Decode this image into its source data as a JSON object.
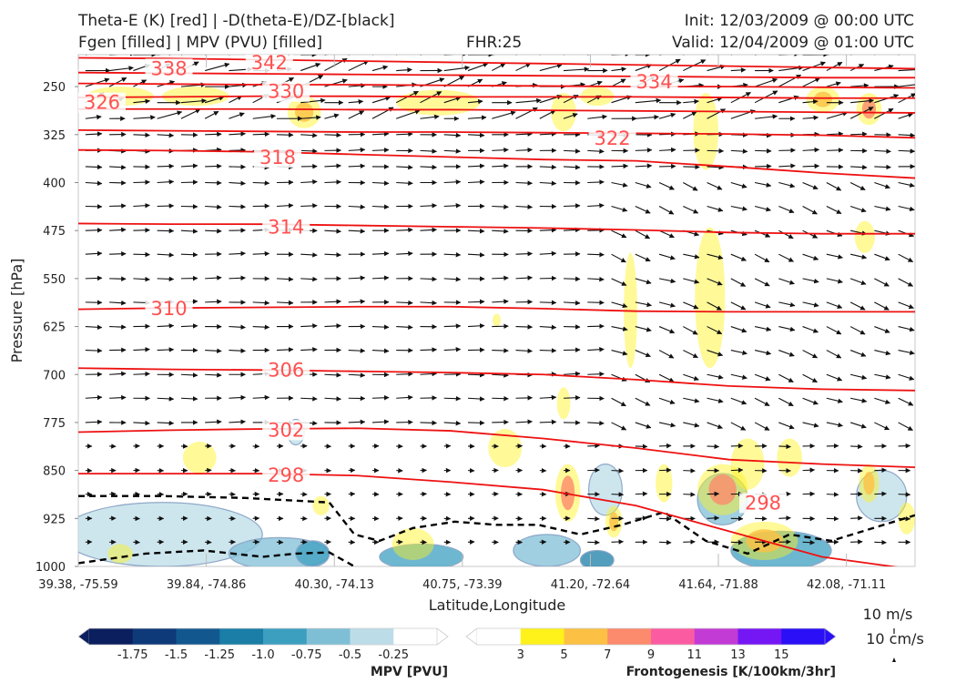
{
  "header": {
    "title_line1": "Theta-E (K) [red] | -D(theta-E)/DZ-[black]",
    "title_line2": "Fgen [filled] | MPV (PVU) [filled]",
    "fhr": "FHR:25",
    "init": "Init: 12/03/2009 @ 00:00 UTC",
    "valid": "Valid: 12/04/2009 @ 01:00 UTC"
  },
  "chart_data": {
    "type": "cross-section",
    "xlabel": "Latitude,Longitude",
    "ylabel": "Pressure [hPa]",
    "x_ticks": [
      "39.38, -75.59",
      "39.84, -74.86",
      "40.30, -74.13",
      "40.75, -73.39",
      "41.20, -72.64",
      "41.64, -71.88",
      "42.08, -71.11"
    ],
    "y_ticks": [
      250,
      325,
      400,
      475,
      550,
      625,
      700,
      775,
      850,
      925,
      1000
    ],
    "ylim": [
      1000,
      200
    ],
    "theta_e_contours": [
      {
        "value": 298,
        "pressure": [
          855,
          855,
          855,
          858,
          868,
          880,
          905,
          945,
          985,
          1005
        ]
      },
      {
        "value": 302,
        "pressure": [
          790,
          787,
          785,
          784,
          788,
          800,
          815,
          833,
          840,
          845
        ]
      },
      {
        "value": 306,
        "pressure": [
          690,
          692,
          693,
          695,
          697,
          700,
          708,
          718,
          723,
          725
        ]
      },
      {
        "value": 310,
        "pressure": [
          598,
          596,
          595,
          594,
          594,
          597,
          601,
          602,
          602,
          602
        ]
      },
      {
        "value": 314,
        "pressure": [
          464,
          465,
          465,
          467,
          469,
          471,
          474,
          478,
          480,
          480
        ]
      },
      {
        "value": 318,
        "pressure": [
          349,
          350,
          352,
          356,
          360,
          364,
          366,
          375,
          385,
          393
        ]
      },
      {
        "value": 322,
        "pressure": [
          318,
          319,
          320,
          321,
          321,
          322,
          323,
          324,
          326,
          330
        ]
      },
      {
        "value": 326,
        "pressure": [
          285,
          285,
          285,
          286,
          286,
          287,
          288,
          289,
          290,
          291
        ]
      },
      {
        "value": 330,
        "pressure": [
          267,
          266,
          265,
          265,
          266,
          266,
          266,
          267,
          268,
          268
        ]
      },
      {
        "value": 334,
        "pressure": [
          245,
          246,
          247,
          247,
          248,
          249,
          250,
          250,
          251,
          252
        ]
      },
      {
        "value": 338,
        "pressure": [
          228,
          229,
          230,
          231,
          232,
          233,
          234,
          235,
          236,
          236
        ]
      },
      {
        "value": 342,
        "pressure": [
          205,
          206,
          208,
          210,
          212,
          214,
          216,
          218,
          220,
          222
        ]
      }
    ],
    "theta_e_labels": [
      {
        "text": "342",
        "frac": 0.2,
        "p": 213
      },
      {
        "text": "338",
        "frac": 0.08,
        "p": 222
      },
      {
        "text": "334",
        "frac": 0.66,
        "p": 243
      },
      {
        "text": "330",
        "frac": 0.22,
        "p": 258
      },
      {
        "text": "326",
        "frac": 0.0,
        "p": 275
      },
      {
        "text": "322",
        "frac": 0.61,
        "p": 331
      },
      {
        "text": "318",
        "frac": 0.21,
        "p": 361
      },
      {
        "text": "314",
        "frac": 0.22,
        "p": 470
      },
      {
        "text": "310",
        "frac": 0.08,
        "p": 597
      },
      {
        "text": "306",
        "frac": 0.22,
        "p": 693
      },
      {
        "text": "302",
        "frac": 0.22,
        "p": 787
      },
      {
        "text": "298",
        "frac": 0.22,
        "p": 858
      },
      {
        "text": "298",
        "frac": 0.79,
        "p": 901
      }
    ],
    "fgen_blobs": [
      {
        "frac": 0.05,
        "p": 265,
        "rx": 0.04,
        "rp": 15,
        "level": 3
      },
      {
        "frac": 0.14,
        "p": 265,
        "rx": 0.04,
        "rp": 15,
        "level": 3
      },
      {
        "frac": 0.27,
        "p": 290,
        "rx": 0.02,
        "rp": 25,
        "level": 5
      },
      {
        "frac": 0.43,
        "p": 275,
        "rx": 0.05,
        "rp": 20,
        "level": 3
      },
      {
        "frac": 0.58,
        "p": 290,
        "rx": 0.015,
        "rp": 30,
        "level": 3
      },
      {
        "frac": 0.62,
        "p": 265,
        "rx": 0.02,
        "rp": 15,
        "level": 3
      },
      {
        "frac": 0.75,
        "p": 320,
        "rx": 0.015,
        "rp": 60,
        "level": 3
      },
      {
        "frac": 0.89,
        "p": 270,
        "rx": 0.02,
        "rp": 20,
        "level": 5
      },
      {
        "frac": 0.945,
        "p": 285,
        "rx": 0.015,
        "rp": 25,
        "level": 7
      },
      {
        "frac": 0.94,
        "p": 485,
        "rx": 0.012,
        "rp": 25,
        "level": 3
      },
      {
        "frac": 0.66,
        "p": 600,
        "rx": 0.008,
        "rp": 90,
        "level": 3
      },
      {
        "frac": 0.755,
        "p": 580,
        "rx": 0.018,
        "rp": 110,
        "level": 3
      },
      {
        "frac": 0.5,
        "p": 615,
        "rx": 0.005,
        "rp": 10,
        "level": 3
      },
      {
        "frac": 0.58,
        "p": 745,
        "rx": 0.008,
        "rp": 25,
        "level": 3
      },
      {
        "frac": 0.51,
        "p": 815,
        "rx": 0.02,
        "rp": 30,
        "level": 3
      },
      {
        "frac": 0.145,
        "p": 830,
        "rx": 0.02,
        "rp": 25,
        "level": 3
      },
      {
        "frac": 0.585,
        "p": 885,
        "rx": 0.015,
        "rp": 45,
        "level": 7
      },
      {
        "frac": 0.64,
        "p": 930,
        "rx": 0.01,
        "rp": 25,
        "level": 5
      },
      {
        "frac": 0.7,
        "p": 870,
        "rx": 0.01,
        "rp": 30,
        "level": 3
      },
      {
        "frac": 0.77,
        "p": 880,
        "rx": 0.03,
        "rp": 40,
        "level": 7
      },
      {
        "frac": 0.8,
        "p": 840,
        "rx": 0.02,
        "rp": 40,
        "level": 3
      },
      {
        "frac": 0.85,
        "p": 830,
        "rx": 0.015,
        "rp": 30,
        "level": 3
      },
      {
        "frac": 0.82,
        "p": 960,
        "rx": 0.04,
        "rp": 30,
        "level": 5
      },
      {
        "frac": 0.945,
        "p": 870,
        "rx": 0.012,
        "rp": 30,
        "level": 5
      },
      {
        "frac": 0.99,
        "p": 925,
        "rx": 0.01,
        "rp": 25,
        "level": 3
      },
      {
        "frac": 0.4,
        "p": 965,
        "rx": 0.025,
        "rp": 25,
        "level": 3
      },
      {
        "frac": 0.29,
        "p": 905,
        "rx": 0.01,
        "rp": 15,
        "level": 3
      },
      {
        "frac": 0.05,
        "p": 980,
        "rx": 0.015,
        "rp": 15,
        "level": 3
      }
    ],
    "mpv_blobs": [
      {
        "frac": 0.1,
        "p": 950,
        "rx": 0.12,
        "rp": 50,
        "level": -0.25
      },
      {
        "frac": 0.24,
        "p": 980,
        "rx": 0.06,
        "rp": 25,
        "level": -0.5
      },
      {
        "frac": 0.28,
        "p": 980,
        "rx": 0.02,
        "rp": 20,
        "level": -0.75
      },
      {
        "frac": 0.41,
        "p": 985,
        "rx": 0.05,
        "rp": 20,
        "level": -0.75
      },
      {
        "frac": 0.56,
        "p": 975,
        "rx": 0.04,
        "rp": 25,
        "level": -0.5
      },
      {
        "frac": 0.62,
        "p": 990,
        "rx": 0.02,
        "rp": 15,
        "level": -1.0
      },
      {
        "frac": 0.63,
        "p": 880,
        "rx": 0.02,
        "rp": 40,
        "level": -0.25
      },
      {
        "frac": 0.77,
        "p": 895,
        "rx": 0.03,
        "rp": 40,
        "level": -0.5
      },
      {
        "frac": 0.84,
        "p": 975,
        "rx": 0.06,
        "rp": 30,
        "level": -0.75
      },
      {
        "frac": 0.96,
        "p": 890,
        "rx": 0.03,
        "rp": 40,
        "level": -0.25
      },
      {
        "frac": 0.26,
        "p": 790,
        "rx": 0.01,
        "rp": 20,
        "level": -0.25
      }
    ],
    "dthetae_dz_dashed": [
      {
        "frac": [
          0.0,
          0.1,
          0.2,
          0.3,
          0.33,
          0.36,
          0.4,
          0.45,
          0.5,
          0.55,
          0.6,
          0.65,
          0.7,
          0.75,
          0.8,
          0.85,
          0.9,
          0.95,
          1.0
        ],
        "p": [
          890,
          890,
          893,
          900,
          950,
          960,
          940,
          930,
          935,
          935,
          950,
          935,
          915,
          960,
          980,
          950,
          960,
          940,
          920
        ]
      },
      {
        "frac": [
          0.0,
          0.08,
          0.15,
          0.22,
          0.26,
          0.3,
          0.33
        ],
        "p": [
          995,
          980,
          975,
          985,
          980,
          978,
          1000
        ]
      }
    ],
    "wind_ref": {
      "label1": "10 m/s",
      "label2": "10 cm/s"
    },
    "colorbars": {
      "mpv": {
        "label": "MPV [PVU]",
        "ticks": [
          "-1.75",
          "-1.5",
          "-1.25",
          "-1.0",
          "-0.75",
          "-0.5",
          "-0.25"
        ],
        "colors": [
          "#0b1f5e",
          "#0e3a7a",
          "#12588f",
          "#1a7ea6",
          "#3d9fc0",
          "#7fbfd6",
          "#bcdde8",
          "#ffffff"
        ]
      },
      "fgen": {
        "label": "Frontogenesis [K/100km/3hr]",
        "ticks": [
          "3",
          "5",
          "7",
          "9",
          "11",
          "13",
          "15"
        ],
        "colors": [
          "#ffffff",
          "#fff21a",
          "#fcc044",
          "#fc8a6c",
          "#fb5ca1",
          "#c23bd5",
          "#7517f4",
          "#2a0ff7"
        ]
      }
    }
  }
}
